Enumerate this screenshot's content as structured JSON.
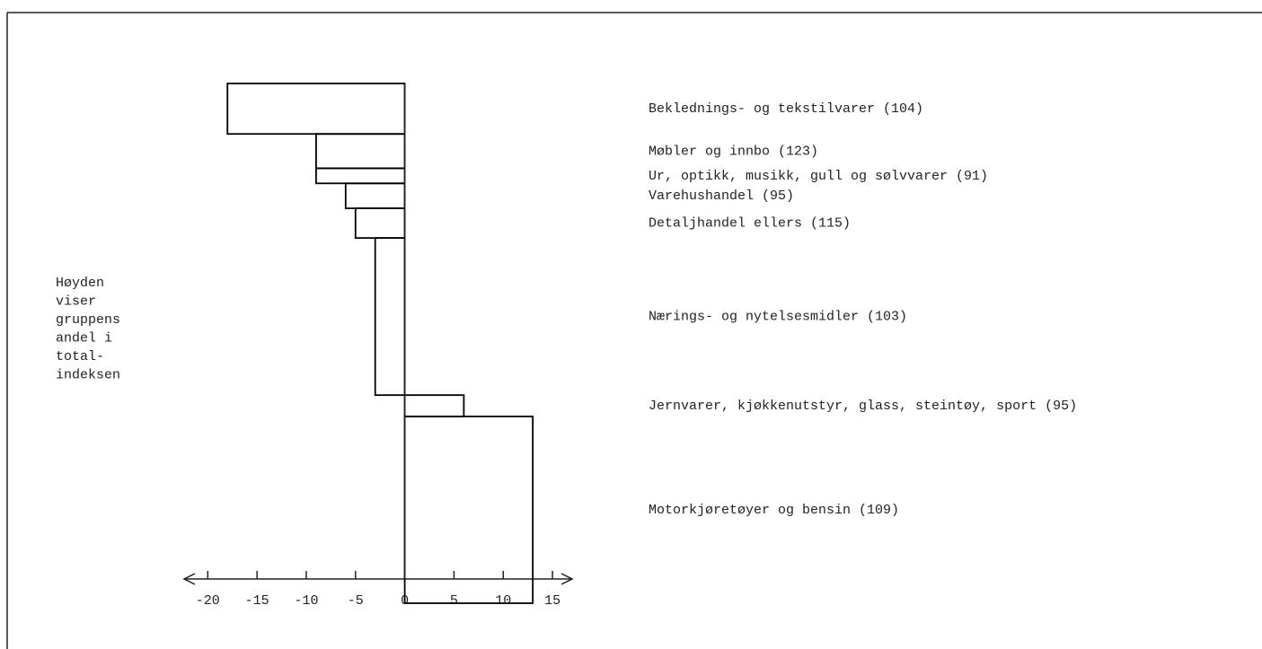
{
  "chart_data": {
    "type": "bar",
    "orientation": "horizontal",
    "categories": [
      "Beklednings- og tekstilvarer (104)",
      "Møbler og innbo (123)",
      "Ur, optikk, musikk, gull og sølvvarer (91)",
      "Varehushandel (95)",
      "Detaljhandel ellers (115)",
      "Nærings- og nytelsesmidler (103)",
      "Jernvarer, kjøkkenutstyr, glass, steintøy, sport (95)",
      "Motorkjøretøyer og bensin (109)"
    ],
    "values": [
      -18,
      -9,
      -9,
      -6,
      -5,
      -3,
      6,
      13
    ],
    "weights": [
      9.7,
      6.6,
      2.9,
      4.8,
      5.7,
      30.2,
      4.1,
      35.9
    ],
    "annotation": [
      "Høyden",
      "viser",
      "gruppens",
      "andel i",
      "total-",
      "indeksen"
    ],
    "xlim": [
      -22.4,
      17
    ],
    "xticks": [
      -20,
      -15,
      -10,
      -5,
      0,
      5,
      10,
      15
    ],
    "color": "#000000"
  }
}
